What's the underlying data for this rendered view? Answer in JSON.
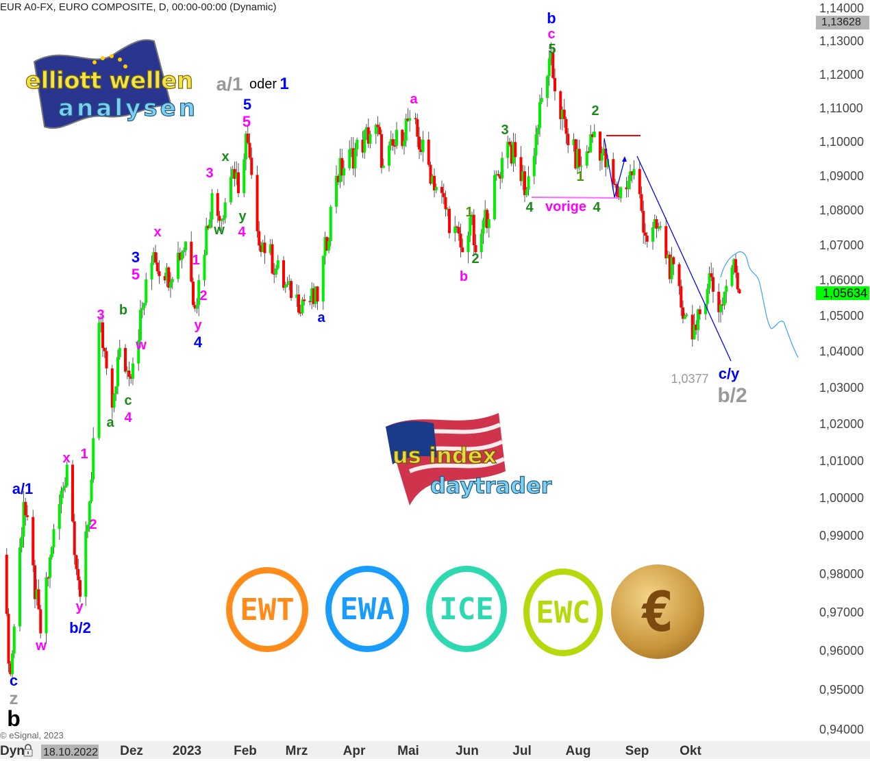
{
  "header": {
    "title": "EUR A0-FX, EURO COMPOSITE, D, 00:00-00:00 (Dynamic)"
  },
  "footer": {
    "copyright": "© eSignal, 2023",
    "dyn_label": "Dyn",
    "date_box": "18.10.2022",
    "lock_icon": "padlock-icon"
  },
  "logos": {
    "top_left": "elliott wellen analysen",
    "center": "us index daytrader",
    "badges": [
      {
        "text": "EWT",
        "color": "#ff8c1a"
      },
      {
        "text": "EWA",
        "color": "#1a9cff"
      },
      {
        "text": "ICE",
        "color": "#2ed8b0"
      },
      {
        "text": "EWC",
        "color": "#b8d80e"
      },
      {
        "text": "€",
        "color": "#c8953a"
      }
    ]
  },
  "colors": {
    "up": "#00ee00",
    "down": "#ff0000",
    "wick": "#555555",
    "last_price_bg": "#00ff00",
    "high_price_bg": "#b4b4b4"
  },
  "chart_data": {
    "type": "candlestick",
    "instrument": "EUR A0-FX",
    "yscale": "log",
    "ylim": [
      0.94,
      1.14
    ],
    "y_ticks": [
      "1,14000",
      "1,13000",
      "1,12000",
      "1,11000",
      "1,10000",
      "1,09000",
      "1,08000",
      "1,07000",
      "1,06000",
      "1,05000",
      "1,04000",
      "1,03000",
      "1,02000",
      "1,01000",
      "1,00000",
      "0,99000",
      "0,98000",
      "0,97000",
      "0,96000",
      "0,95000",
      "0,94000"
    ],
    "x_ticks": [
      "Dez",
      "2023",
      "Feb",
      "Mrz",
      "Apr",
      "Mai",
      "Jun",
      "Jul",
      "Aug",
      "Sep",
      "Okt"
    ],
    "price_markers": {
      "high": "1,13628",
      "last": "1,05634"
    },
    "grid": false,
    "approx_pivots": [
      [
        "2022-09-30",
        0.985
      ],
      [
        "2022-10-05",
        0.954
      ],
      [
        "2022-10-12",
        0.999
      ],
      [
        "2022-10-21",
        0.9645
      ],
      [
        "2022-10-27",
        0.987
      ],
      [
        "2022-11-04",
        1.009
      ],
      [
        "2022-11-11",
        0.974
      ],
      [
        "2022-11-17",
        1.005
      ],
      [
        "2022-11-21",
        1.048
      ],
      [
        "2022-11-28",
        1.0245
      ],
      [
        "2022-12-02",
        1.041
      ],
      [
        "2022-12-07",
        1.033
      ],
      [
        "2022-12-20",
        1.068
      ],
      [
        "2022-12-26",
        1.06
      ],
      [
        "2023-01-06",
        1.071
      ],
      [
        "2023-01-11",
        1.052
      ],
      [
        "2023-01-20",
        1.085
      ],
      [
        "2023-01-24",
        1.077
      ],
      [
        "2023-01-31",
        1.092
      ],
      [
        "2023-02-03",
        1.085
      ],
      [
        "2023-02-07",
        1.1024
      ],
      [
        "2023-02-13",
        1.074
      ],
      [
        "2023-03-03",
        1.055
      ],
      [
        "2023-03-17",
        1.054
      ],
      [
        "2023-03-27",
        1.09
      ],
      [
        "2023-04-17",
        1.105
      ],
      [
        "2023-04-21",
        1.093
      ],
      [
        "2023-05-05",
        1.107
      ],
      [
        "2023-05-17",
        1.09
      ],
      [
        "2023-06-02",
        1.068
      ],
      [
        "2023-06-06",
        1.078
      ],
      [
        "2023-06-09",
        1.068
      ],
      [
        "2023-06-26",
        1.1
      ],
      [
        "2023-07-06",
        1.086
      ],
      [
        "2023-07-18",
        1.1248
      ],
      [
        "2023-07-28",
        1.099
      ],
      [
        "2023-08-04",
        1.093
      ],
      [
        "2023-08-11",
        1.103
      ],
      [
        "2023-08-23",
        1.084
      ],
      [
        "2023-09-01",
        1.092
      ],
      [
        "2023-09-08",
        1.071
      ],
      [
        "2023-09-14",
        1.075
      ],
      [
        "2023-09-28",
        1.05
      ],
      [
        "2023-10-04",
        1.046
      ],
      [
        "2023-10-11",
        1.062
      ],
      [
        "2023-10-16",
        1.051
      ],
      [
        "2023-10-24",
        1.066
      ],
      [
        "2023-10-27",
        1.0563
      ]
    ],
    "annotations": [
      {
        "text": "b",
        "color": "#0000ff"
      },
      {
        "text": "c",
        "color": "#ff00ff"
      },
      {
        "text": "5",
        "color": "#1a8a1a"
      },
      {
        "text": "a/1",
        "color": "#999999"
      },
      {
        "text": "oder",
        "color": "#000000"
      },
      {
        "text": "1",
        "color": "#0000ff"
      },
      {
        "text": "5",
        "color": "#0000ff"
      },
      {
        "text": "5",
        "color": "#ff00ff"
      },
      {
        "text": "a",
        "color": "#ff00ff"
      },
      {
        "text": "3",
        "color": "#1a8a1a"
      },
      {
        "text": "2",
        "color": "#1a8a1a"
      },
      {
        "text": "1",
        "color": "#4a9a00"
      },
      {
        "text": "x",
        "color": "#1a8a1a"
      },
      {
        "text": "3",
        "color": "#ff00ff"
      },
      {
        "text": "y",
        "color": "#1a8a1a"
      },
      {
        "text": "w",
        "color": "#1a8a1a"
      },
      {
        "text": "4",
        "color": "#ff00ff"
      },
      {
        "text": "1",
        "color": "#4a9a00"
      },
      {
        "text": "2",
        "color": "#1a8a1a"
      },
      {
        "text": "b",
        "color": "#ff00ff"
      },
      {
        "text": "4",
        "color": "#1a8a1a"
      },
      {
        "text": "vorige",
        "color": "#ff00ff"
      },
      {
        "text": "4",
        "color": "#1a8a1a"
      },
      {
        "text": "x",
        "color": "#ff00ff"
      },
      {
        "text": "3",
        "color": "#0000ff"
      },
      {
        "text": "5",
        "color": "#ff00ff"
      },
      {
        "text": "1",
        "color": "#ff00ff"
      },
      {
        "text": "2",
        "color": "#ff00ff"
      },
      {
        "text": "y",
        "color": "#ff00ff"
      },
      {
        "text": "4",
        "color": "#0000ff"
      },
      {
        "text": "a",
        "color": "#0000ff"
      },
      {
        "text": "b",
        "color": "#1a8a1a"
      },
      {
        "text": "3",
        "color": "#ff00ff"
      },
      {
        "text": "w",
        "color": "#ff00ff"
      },
      {
        "text": "c",
        "color": "#1a8a1a"
      },
      {
        "text": "4",
        "color": "#ff00ff"
      },
      {
        "text": "a",
        "color": "#1a8a1a"
      },
      {
        "text": "x",
        "color": "#ff00ff"
      },
      {
        "text": "1",
        "color": "#ff00ff"
      },
      {
        "text": "a/1",
        "color": "#0000ff"
      },
      {
        "text": "2",
        "color": "#ff00ff"
      },
      {
        "text": "y",
        "color": "#ff00ff"
      },
      {
        "text": "b/2",
        "color": "#0000ff"
      },
      {
        "text": "w",
        "color": "#ff00ff"
      },
      {
        "text": "c",
        "color": "#0000ff"
      },
      {
        "text": "z",
        "color": "#999999"
      },
      {
        "text": "b",
        "color": "#000000"
      },
      {
        "text": "1,0377",
        "color": "#999999"
      },
      {
        "text": "c/y",
        "color": "#0000ff"
      },
      {
        "text": "b/2",
        "color": "#999999"
      }
    ]
  }
}
